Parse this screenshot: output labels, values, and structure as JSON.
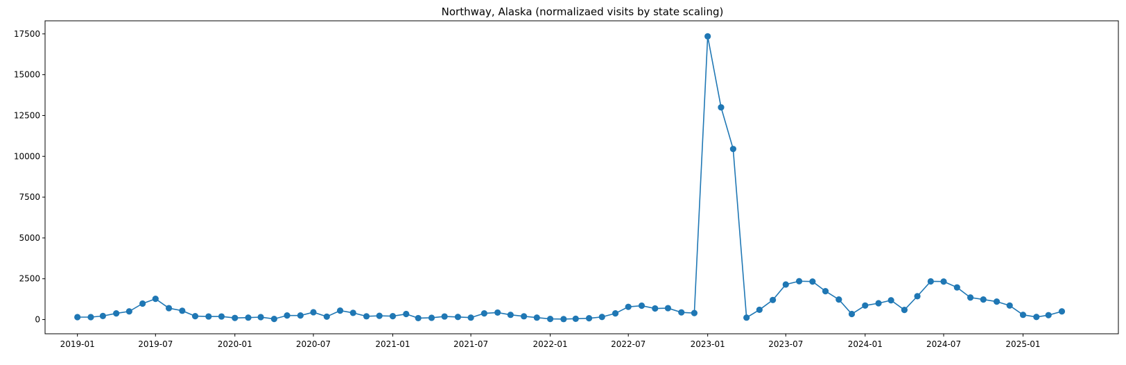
{
  "chart_data": {
    "type": "line",
    "title": "Northway, Alaska (normalizaed visits by state scaling)",
    "xlabel": "",
    "ylabel": "",
    "x_tick_labels": [
      "2019-01",
      "2019-07",
      "2020-01",
      "2020-07",
      "2021-01",
      "2021-07",
      "2022-01",
      "2022-07",
      "2023-01",
      "2023-07",
      "2024-01",
      "2024-07",
      "2025-01"
    ],
    "y_tick_labels": [
      "0",
      "2500",
      "5000",
      "7500",
      "10000",
      "12500",
      "15000",
      "17500"
    ],
    "y_ticks": [
      0,
      2500,
      5000,
      7500,
      10000,
      12500,
      15000,
      17500
    ],
    "xlim": [
      "2018-10-18",
      "2025-08-10"
    ],
    "ylim": [
      -870,
      18300
    ],
    "grid": false,
    "color": "#1f77b4",
    "series": [
      {
        "x": [
          "2019-01",
          "2019-02",
          "2019-03",
          "2019-04",
          "2019-05",
          "2019-06",
          "2019-07",
          "2019-08",
          "2019-09",
          "2019-10",
          "2019-11",
          "2019-12",
          "2020-01",
          "2020-02",
          "2020-03",
          "2020-04",
          "2020-05",
          "2020-06",
          "2020-07",
          "2020-08",
          "2020-09",
          "2020-10",
          "2020-11",
          "2020-12",
          "2021-01",
          "2021-02",
          "2021-03",
          "2021-04",
          "2021-05",
          "2021-06",
          "2021-07",
          "2021-08",
          "2021-09",
          "2021-10",
          "2021-11",
          "2021-12",
          "2022-01",
          "2022-02",
          "2022-03",
          "2022-04",
          "2022-05",
          "2022-06",
          "2022-07",
          "2022-08",
          "2022-09",
          "2022-10",
          "2022-11",
          "2022-12",
          "2023-01",
          "2023-02",
          "2023-03",
          "2023-04",
          "2023-05",
          "2023-06",
          "2023-07",
          "2023-08",
          "2023-09",
          "2023-10",
          "2023-11",
          "2023-12",
          "2024-01",
          "2024-02",
          "2024-03",
          "2024-04",
          "2024-05",
          "2024-06",
          "2024-07",
          "2024-08",
          "2024-09",
          "2024-10",
          "2024-11",
          "2024-12",
          "2025-01",
          "2025-02",
          "2025-03",
          "2025-04"
        ],
        "values": [
          150,
          150,
          220,
          380,
          500,
          980,
          1270,
          700,
          540,
          210,
          190,
          190,
          100,
          120,
          150,
          40,
          250,
          250,
          450,
          180,
          550,
          410,
          200,
          230,
          210,
          340,
          90,
          110,
          190,
          160,
          120,
          380,
          430,
          290,
          200,
          120,
          40,
          30,
          50,
          80,
          160,
          380,
          780,
          850,
          680,
          700,
          440,
          400,
          17350,
          13000,
          10450,
          120,
          600,
          1200,
          2150,
          2350,
          2330,
          1740,
          1230,
          340,
          860,
          1000,
          1180,
          590,
          1430,
          2340,
          2330,
          1970,
          1350,
          1230,
          1100,
          860,
          290,
          160,
          270,
          500
        ]
      }
    ]
  }
}
